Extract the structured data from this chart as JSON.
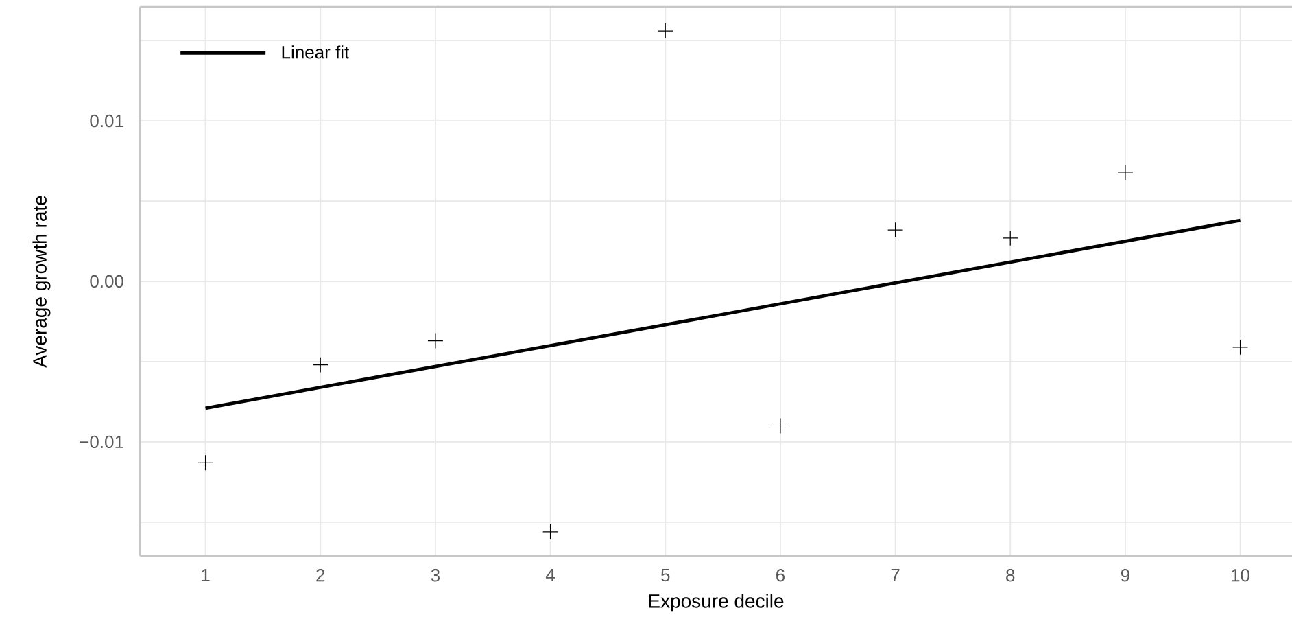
{
  "chart_data": {
    "type": "scatter",
    "xlabel": "Exposure decile",
    "ylabel": "Average growth rate",
    "x": [
      1,
      2,
      3,
      4,
      5,
      6,
      7,
      8,
      9,
      10
    ],
    "series": [
      {
        "color": "#000000",
        "marker": "cross",
        "values": [
          -0.0113,
          -0.0052,
          -0.0037,
          -0.0156,
          0.0156,
          -0.009,
          0.0032,
          0.0027,
          0.0068,
          -0.0041
        ]
      },
      {
        "type": "line",
        "name": "Linear fit",
        "color": "#000000",
        "x": [
          1,
          10
        ],
        "values": [
          -0.0079,
          0.0038
        ]
      }
    ],
    "xlim": [
      0.43,
      10.45
    ],
    "ylim": [
      -0.0171,
      0.0171
    ],
    "xticks": [
      1,
      2,
      3,
      4,
      5,
      6,
      7,
      8,
      9,
      10
    ],
    "yticks": [
      {
        "value": -0.015,
        "label": null
      },
      {
        "value": -0.01,
        "label": "−0.01"
      },
      {
        "value": -0.005,
        "label": null
      },
      {
        "value": 0,
        "label": "0.00"
      },
      {
        "value": 0.005,
        "label": null
      },
      {
        "value": 0.01,
        "label": "0.01"
      },
      {
        "value": 0.015,
        "label": null
      }
    ],
    "grid": true,
    "legend": "top left"
  }
}
